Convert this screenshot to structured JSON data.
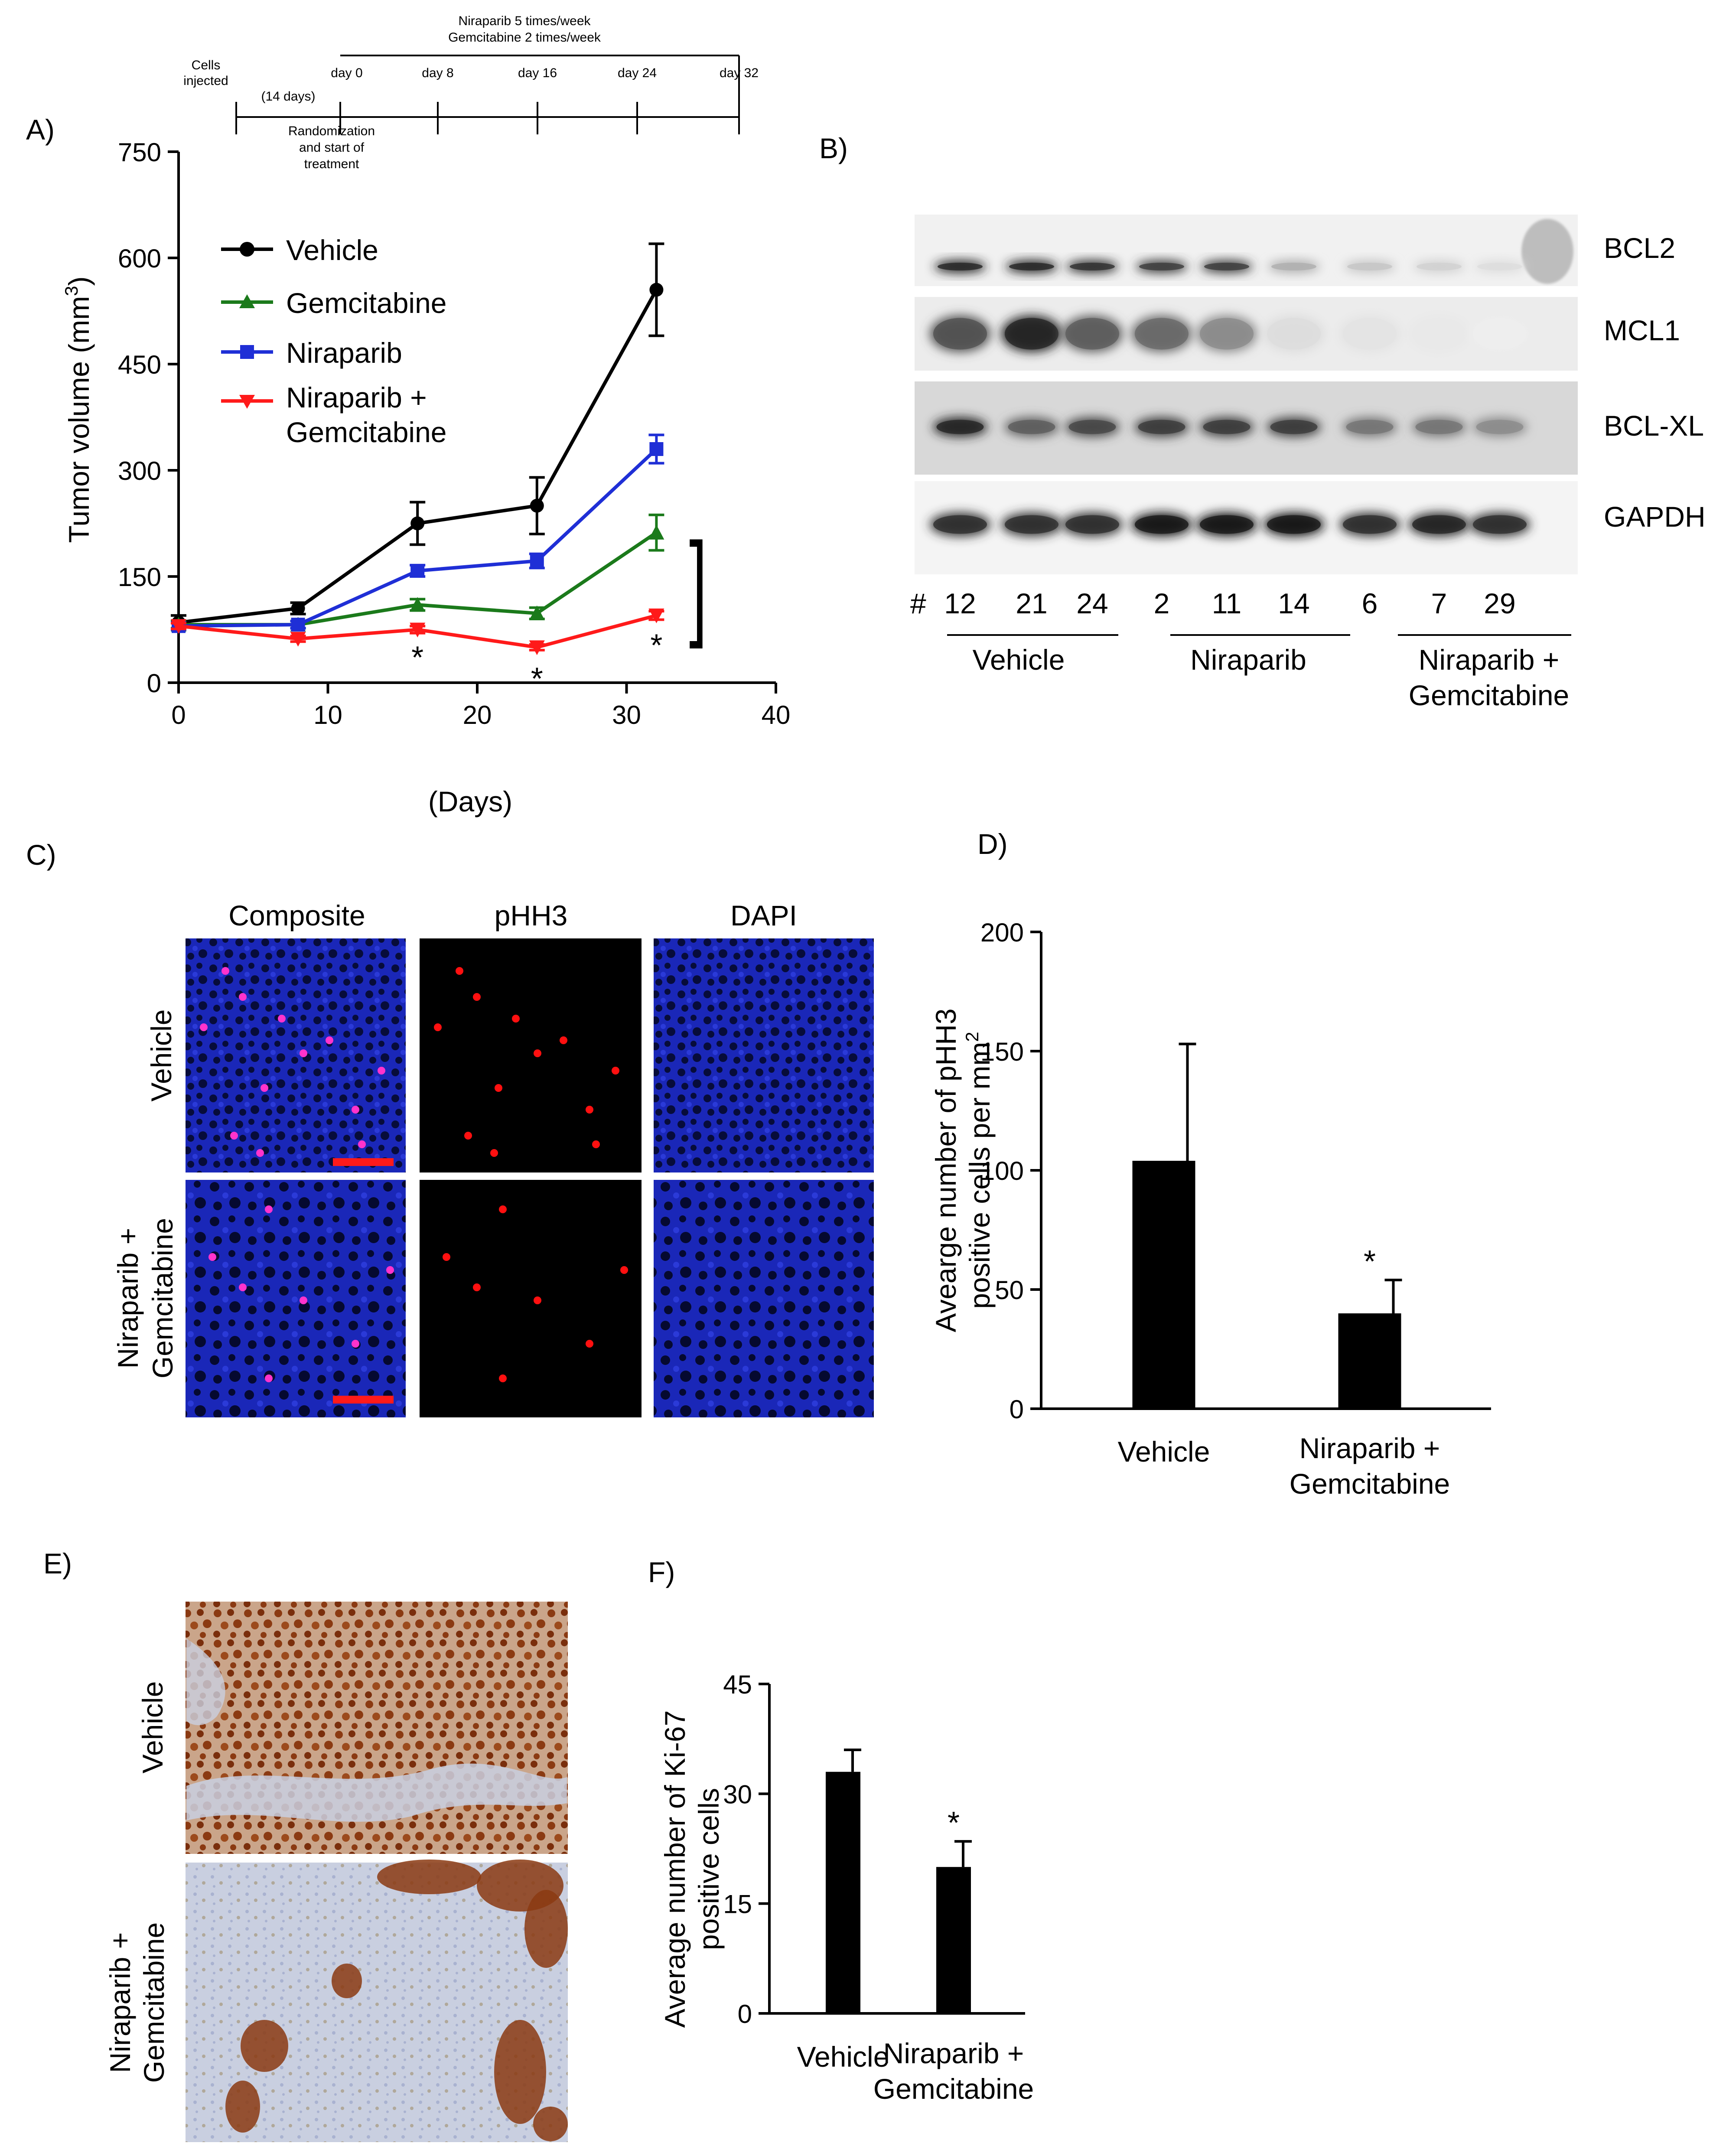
{
  "panels": {
    "a": "A)",
    "b": "B)",
    "c": "C)",
    "d": "D)",
    "e": "E)",
    "f": "F)"
  },
  "colors": {
    "vehicle": "#000000",
    "gemcitabine": "#1b7a1b",
    "niraparib": "#1f2fd6",
    "combo": "#ff1a1a",
    "ihc_brown": "#8b3a12",
    "ihc_background": "#c9cfe0",
    "if_blue": "#1a27b8",
    "if_red": "#ff1010"
  },
  "timeline": {
    "header_line1": "Niraparib 5 times/week",
    "header_line2": "Gemcitabine 2 times/week",
    "cells_line1": "Cells",
    "cells_line2": "injected",
    "interval": "(14 days)",
    "rand_line1": "Randomization",
    "rand_line2": "and start of",
    "rand_line3": "treatment",
    "days": [
      "day 0",
      "day 8",
      "day 16",
      "day 24",
      "day 32"
    ]
  },
  "western_blot": {
    "bands": [
      "BCL2",
      "MCL1",
      "BCL-XL",
      "GAPDH"
    ],
    "hash": "#",
    "samples": [
      "12",
      "21",
      "24",
      "2",
      "11",
      "14",
      "6",
      "7",
      "29"
    ],
    "groups": [
      "Vehicle",
      "Niraparib"
    ],
    "group3_line1": "Niraparib +",
    "group3_line2": "Gemcitabine"
  },
  "if_images": {
    "columns": [
      "Composite",
      "pHH3",
      "DAPI"
    ],
    "row1": "Vehicle",
    "row2_line1": "Niraparib +",
    "row2_line2": "Gemcitabine"
  },
  "ihc_images": {
    "row1": "Vehicle",
    "row2_line1": "Niraparib +",
    "row2_line2": "Gemcitabine"
  },
  "chart_data": [
    {
      "panel": "A",
      "type": "line",
      "xlabel": "(Days)",
      "ylabel_main": "Tumor volume (mm",
      "ylabel_sup": "3",
      "ylabel_close": ")",
      "xlim": [
        0,
        40
      ],
      "ylim": [
        0,
        750
      ],
      "xticks": [
        0,
        10,
        20,
        30,
        40
      ],
      "yticks": [
        0,
        150,
        300,
        450,
        600,
        750
      ],
      "x": [
        0,
        8,
        16,
        24,
        32
      ],
      "series": [
        {
          "name": "Vehicle",
          "values": [
            85,
            105,
            225,
            250,
            555
          ],
          "errors": [
            10,
            8,
            30,
            40,
            65
          ],
          "marker": "circle",
          "color": "#000000"
        },
        {
          "name": "Gemcitabine",
          "values": [
            82,
            82,
            110,
            98,
            212
          ],
          "errors": [
            5,
            5,
            8,
            8,
            25
          ],
          "marker": "triangle-up",
          "color": "#1b7a1b"
        },
        {
          "name": "Niraparib",
          "values": [
            80,
            82,
            158,
            172,
            330
          ],
          "errors": [
            5,
            5,
            8,
            10,
            20
          ],
          "marker": "square",
          "color": "#1f2fd6"
        },
        {
          "name_line1": "Niraparib +",
          "name_line2": "Gemcitabine",
          "values": [
            80,
            62,
            75,
            50,
            95
          ],
          "errors": [
            4,
            4,
            5,
            4,
            6
          ],
          "marker": "triangle-down",
          "color": "#ff1a1a"
        }
      ],
      "annotations": [
        {
          "x": 16,
          "y": 45,
          "text": "*"
        },
        {
          "x": 24,
          "y": 15,
          "text": "*"
        },
        {
          "x": 32,
          "y": 62,
          "text": "*"
        }
      ],
      "bracket_text": "]"
    },
    {
      "panel": "D",
      "type": "bar",
      "categories": [
        "Vehicle",
        "Niraparib +\nGemcitabine"
      ],
      "cat2_line1": "Niraparib +",
      "cat2_line2": "Gemcitabine",
      "values": [
        104,
        40
      ],
      "errors": [
        49,
        14
      ],
      "significance": [
        "",
        "*"
      ],
      "ylabel_line1": "Avearge number of pHH3",
      "ylabel_line2_main": "positive cells per mm",
      "ylabel_line2_sup": "2",
      "ylim": [
        0,
        200
      ],
      "yticks": [
        0,
        50,
        100,
        150,
        200
      ]
    },
    {
      "panel": "F",
      "type": "bar",
      "categories": [
        "Vehicle",
        "Niraparib +\nGemcitabine"
      ],
      "cat2_line1": "Niraparib +",
      "cat2_line2": "Gemcitabine",
      "values": [
        33,
        20
      ],
      "errors": [
        3,
        3.5
      ],
      "significance": [
        "",
        "*"
      ],
      "ylabel_line1": "Average number of Ki-67",
      "ylabel_line2": "positive cells",
      "ylim": [
        0,
        45
      ],
      "yticks": [
        0,
        15,
        30,
        45
      ]
    }
  ]
}
